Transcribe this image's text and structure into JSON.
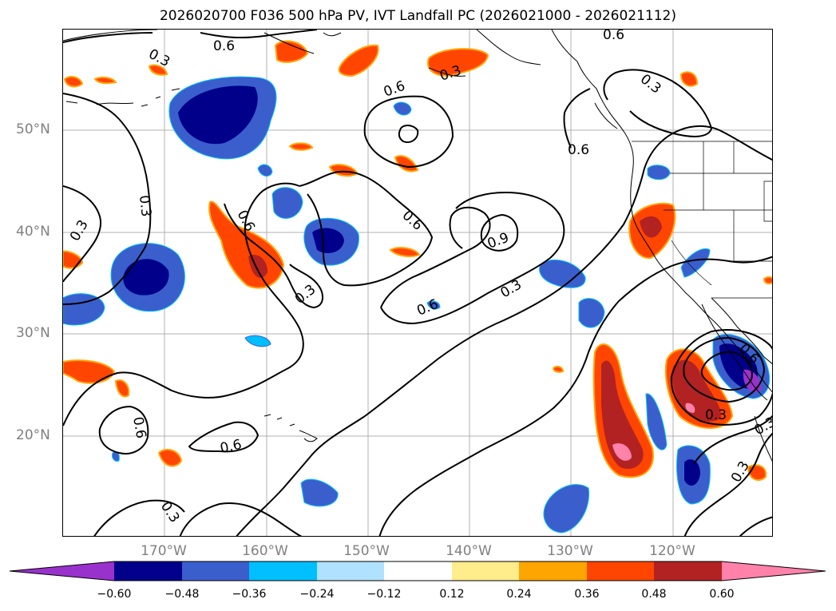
{
  "title": "2026020700 F036 500 hPa PV, IVT Landfall PC (2026021000 - 2026021112)",
  "lat_labels": [
    "50°N",
    "40°N",
    "30°N",
    "20°N"
  ],
  "lon_labels": [
    "170°W",
    "160°W",
    "150°W",
    "140°W",
    "130°W",
    "120°W"
  ],
  "contour_labels": [
    "0.3",
    "0.6",
    "0.6",
    "0.3",
    "0.6",
    "0.3",
    "0.6",
    "0.3",
    "0.3",
    "0.6",
    "0.6",
    "0.3",
    "0.9",
    "0.3",
    "0.6",
    "0.6",
    "0.6",
    "0.6",
    "0.3",
    "0.3",
    "0.3",
    "0.3"
  ],
  "colorbar": {
    "ticks": [
      "−0.60",
      "−0.48",
      "−0.36",
      "−0.24",
      "−0.12",
      "0.12",
      "0.24",
      "0.36",
      "0.48",
      "0.60"
    ],
    "colors": [
      "#9932cc",
      "#00008b",
      "#3a5fcd",
      "#00bfff",
      "#b0e2ff",
      "#ffffff",
      "#ffec8b",
      "#ffa500",
      "#ff4500",
      "#b22222",
      "#ff82ab"
    ]
  }
}
